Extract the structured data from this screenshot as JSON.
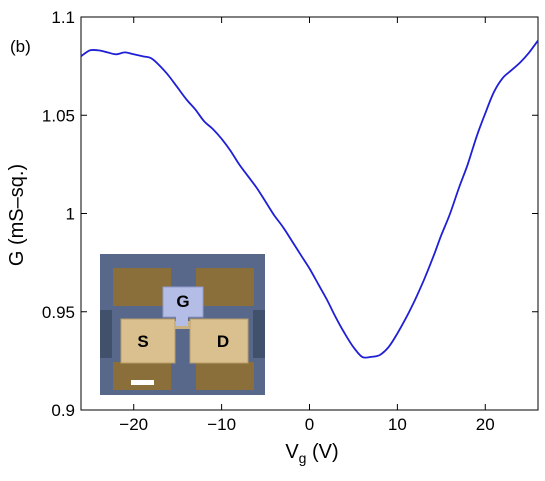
{
  "chart_data": {
    "type": "line",
    "panel_label": "(b)",
    "xlabel_main": "V",
    "xlabel_sub": "g",
    "xlabel_unit": " (V)",
    "ylabel": "G (mS–sq.)",
    "xlim": [
      -26,
      26
    ],
    "ylim": [
      0.9,
      1.1
    ],
    "x_ticks": [
      -20,
      -10,
      0,
      10,
      20
    ],
    "x_tick_labels": [
      "−20",
      "−10",
      "0",
      "10",
      "20"
    ],
    "y_ticks": [
      0.9,
      0.95,
      1.0,
      1.05,
      1.1
    ],
    "y_tick_labels": [
      "0.9",
      "0.95",
      "1",
      "1.05",
      "1.1"
    ],
    "grid": false,
    "line_color": "#1f1fd6",
    "series": [
      {
        "x": [
          -26,
          -25,
          -24,
          -23,
          -22,
          -21,
          -20,
          -19,
          -18,
          -17,
          -16,
          -15,
          -14,
          -13,
          -12,
          -11,
          -10,
          -9,
          -8,
          -7,
          -6,
          -5,
          -4,
          -3,
          -2,
          -1,
          0,
          1,
          2,
          3,
          4,
          5,
          6,
          7,
          8,
          9,
          10,
          11,
          12,
          13,
          14,
          15,
          16,
          17,
          18,
          19,
          20,
          21,
          22,
          23,
          24,
          25,
          26
        ],
        "y": [
          1.08,
          1.083,
          1.083,
          1.082,
          1.081,
          1.082,
          1.081,
          1.08,
          1.079,
          1.075,
          1.07,
          1.064,
          1.058,
          1.053,
          1.047,
          1.043,
          1.038,
          1.032,
          1.025,
          1.019,
          1.013,
          1.006,
          0.999,
          0.993,
          0.986,
          0.979,
          0.972,
          0.964,
          0.956,
          0.947,
          0.939,
          0.932,
          0.927,
          0.927,
          0.928,
          0.932,
          0.939,
          0.947,
          0.956,
          0.966,
          0.977,
          0.989,
          1.0,
          1.013,
          1.025,
          1.039,
          1.051,
          1.062,
          1.069,
          1.073,
          1.077,
          1.082,
          1.088
        ]
      }
    ],
    "inset": {
      "labels": {
        "gate": "G",
        "source": "S",
        "drain": "D"
      },
      "colors": {
        "background": "#58688a",
        "pad": "#8a6f3a",
        "electrode": "#d9c08e",
        "gate": "#b3bde6",
        "frame": "#41516b"
      }
    }
  }
}
